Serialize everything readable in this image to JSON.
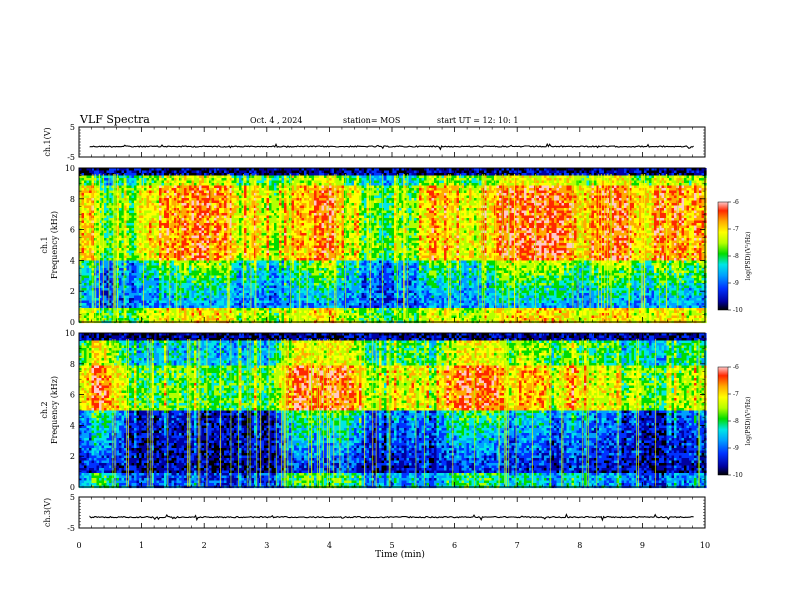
{
  "header": {
    "title": "VLF Spectra",
    "date": "Oct. 4 , 2024",
    "station": "station= MOS",
    "start": "start UT =  12: 10: 1"
  },
  "colors": {
    "palette": [
      "#000000",
      "#0000a0",
      "#0032ff",
      "#00a0ff",
      "#00e6e6",
      "#00dc00",
      "#b4ff00",
      "#ffff00",
      "#ffaa00",
      "#ff2800",
      "#ffc8c8"
    ]
  },
  "chart_data": [
    {
      "id": "ch1-waveform",
      "type": "line",
      "ylabel": "ch.1(V)",
      "ylim": [
        -5,
        5
      ],
      "yticks": [
        "5",
        "-5"
      ],
      "xlim": [
        0,
        10
      ],
      "level": -1.5
    },
    {
      "id": "ch1-spectrogram",
      "type": "heatmap",
      "ylabel_top": "ch.1",
      "ylabel": "Frequency (kHz)",
      "ylim": [
        0,
        10
      ],
      "yticks": [
        "0",
        "2",
        "4",
        "6",
        "8",
        "10"
      ],
      "xlim": [
        0,
        10
      ],
      "intense_band_khz": [
        4,
        9
      ],
      "colorbar": {
        "label": "log(PSD)(V²/Hz)",
        "range": [
          -10,
          -6
        ],
        "ticks": [
          "-6",
          "-7",
          "-8",
          "-9",
          "-10"
        ]
      }
    },
    {
      "id": "ch2-spectrogram",
      "type": "heatmap",
      "ylabel_top": "ch.2",
      "ylabel": "Frequency (kHz)",
      "ylim": [
        0,
        10
      ],
      "yticks": [
        "0",
        "2",
        "4",
        "6",
        "8",
        "10"
      ],
      "xlim": [
        0,
        10
      ],
      "intense_band_khz": [
        5,
        8
      ],
      "colorbar": {
        "label": "log(PSD)(V²/Hz)",
        "range": [
          -10,
          -6
        ],
        "ticks": [
          "-6",
          "-7",
          "-8",
          "-9",
          "-10"
        ]
      }
    },
    {
      "id": "ch3-waveform",
      "type": "line",
      "ylabel": "ch.3(V)",
      "ylim": [
        -5,
        5
      ],
      "yticks": [
        "5",
        "-5"
      ],
      "xlim": [
        0,
        10
      ],
      "level": -1.5
    }
  ],
  "xaxis": {
    "label": "Time (min)",
    "ticks": [
      "0",
      "1",
      "2",
      "3",
      "4",
      "5",
      "6",
      "7",
      "8",
      "9",
      "10"
    ]
  }
}
